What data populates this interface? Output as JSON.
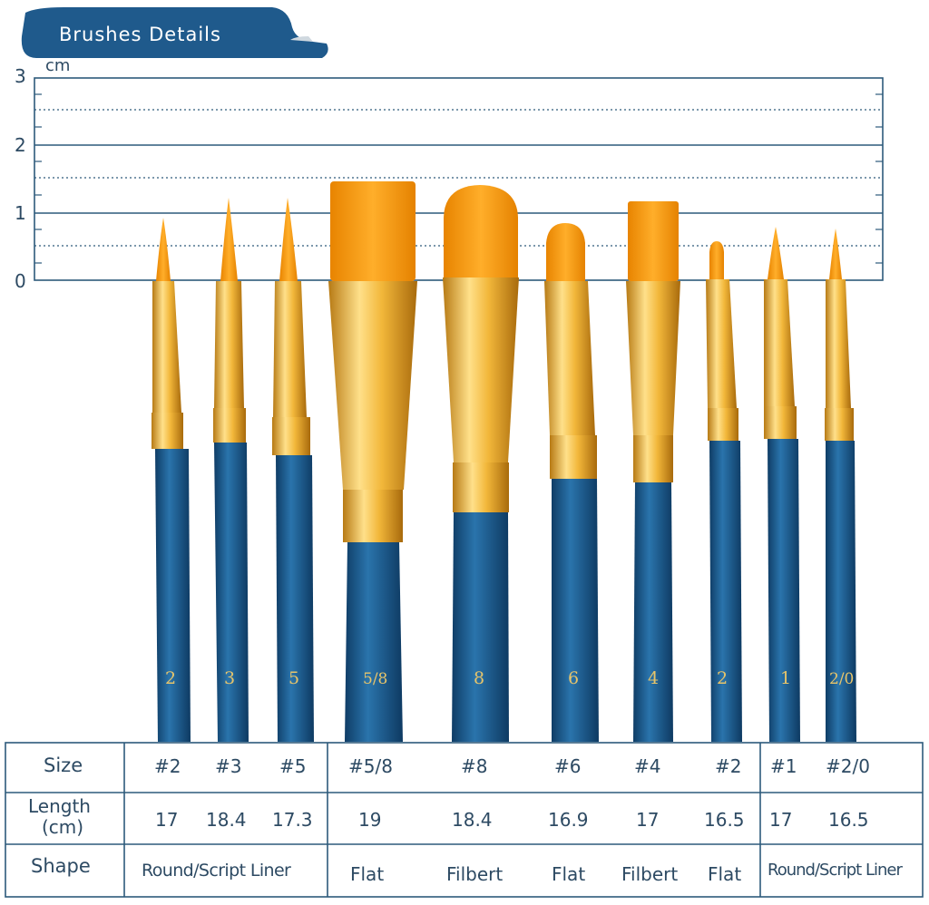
{
  "header": {
    "title": "Brushes Details"
  },
  "ruler": {
    "unit": "cm",
    "ticks": [
      "3",
      "2",
      "1",
      "0"
    ]
  },
  "brush_markings": [
    "2",
    "3",
    "5",
    "5/8",
    "8",
    "6",
    "4",
    "2",
    "1",
    "2/0"
  ],
  "table": {
    "row_labels": {
      "size": "Size",
      "length": "Length\n(cm)",
      "length_line1": "Length",
      "length_line2": "(cm)",
      "shape": "Shape"
    },
    "sizes": [
      "#2",
      "#3",
      "#5",
      "#5/8",
      "#8",
      "#6",
      "#4",
      "#2",
      "#1",
      "#2/0"
    ],
    "lengths": [
      "17",
      "18.4",
      "17.3",
      "19",
      "18.4",
      "16.9",
      "17",
      "16.5",
      "17",
      "16.5"
    ],
    "shapes": [
      "Round/Script Liner",
      "Flat",
      "Filbert",
      "Flat",
      "Filbert",
      "Flat",
      "Round/Script Liner"
    ]
  },
  "colors": {
    "navy": "#1f5a8c",
    "line": "#2d5a7b",
    "bristle": "#f59a0e",
    "ferrule": "#e0a93a",
    "handle": "#1b5f93"
  }
}
